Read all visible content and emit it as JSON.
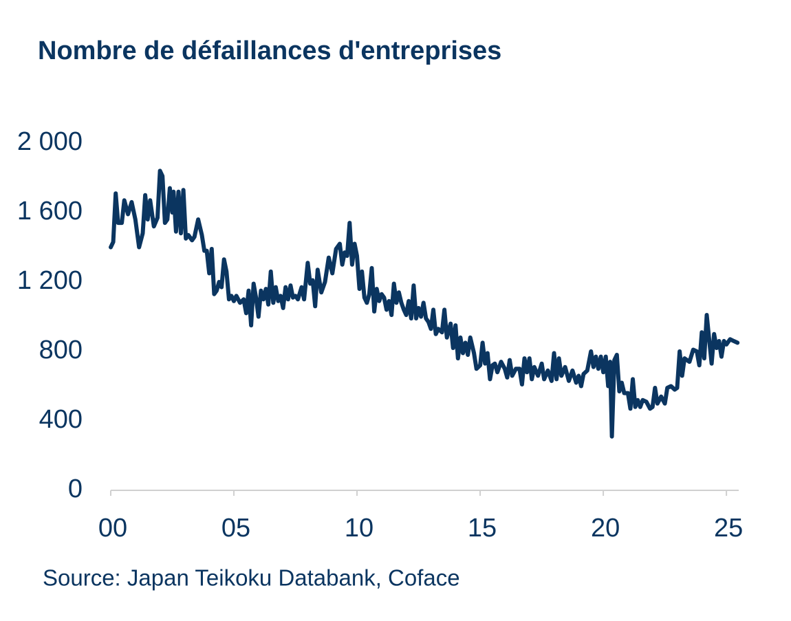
{
  "chart_data": {
    "type": "line",
    "title": "Nombre de défaillances d'entreprises",
    "source": "Source: Japan Teikoku Databank, Coface",
    "color": "#0b3560",
    "xlim": [
      2000,
      2025.5
    ],
    "ylim": [
      0,
      2000
    ],
    "xticks": [
      {
        "value": 2000,
        "label": "00"
      },
      {
        "value": 2005,
        "label": "05"
      },
      {
        "value": 2010,
        "label": "10"
      },
      {
        "value": 2015,
        "label": "15"
      },
      {
        "value": 2020,
        "label": "20"
      },
      {
        "value": 2025,
        "label": "25"
      }
    ],
    "yticks": [
      0,
      400,
      800,
      {
        "value": 1200,
        "label": "1 200"
      },
      {
        "value": 1600,
        "label": "1 600"
      },
      {
        "value": 2000,
        "label": "2 000"
      }
    ],
    "x": [
      2000.0,
      2000.1,
      2000.2,
      2000.3,
      2000.45,
      2000.55,
      2000.7,
      2000.85,
      2001.0,
      2001.15,
      2001.3,
      2001.4,
      2001.5,
      2001.6,
      2001.75,
      2001.9,
      2002.0,
      2002.1,
      2002.2,
      2002.3,
      2002.4,
      2002.5,
      2002.55,
      2002.65,
      2002.75,
      2002.85,
      2002.95,
      2003.05,
      2003.15,
      2003.3,
      2003.4,
      2003.55,
      2003.7,
      2003.8,
      2003.9,
      2004.0,
      2004.1,
      2004.2,
      2004.3,
      2004.4,
      2004.5,
      2004.6,
      2004.7,
      2004.8,
      2004.9,
      2005.0,
      2005.1,
      2005.25,
      2005.4,
      2005.5,
      2005.6,
      2005.7,
      2005.8,
      2005.9,
      2006.0,
      2006.1,
      2006.2,
      2006.3,
      2006.4,
      2006.5,
      2006.6,
      2006.7,
      2006.8,
      2006.9,
      2007.0,
      2007.1,
      2007.2,
      2007.3,
      2007.4,
      2007.5,
      2007.6,
      2007.75,
      2007.85,
      2008.0,
      2008.1,
      2008.2,
      2008.3,
      2008.4,
      2008.55,
      2008.7,
      2008.85,
      2009.0,
      2009.15,
      2009.3,
      2009.4,
      2009.5,
      2009.6,
      2009.7,
      2009.8,
      2009.9,
      2010.0,
      2010.1,
      2010.2,
      2010.3,
      2010.4,
      2010.5,
      2010.6,
      2010.7,
      2010.8,
      2010.9,
      2011.0,
      2011.1,
      2011.2,
      2011.3,
      2011.4,
      2011.5,
      2011.6,
      2011.7,
      2011.8,
      2011.9,
      2012.0,
      2012.1,
      2012.2,
      2012.3,
      2012.4,
      2012.5,
      2012.6,
      2012.7,
      2012.8,
      2012.9,
      2013.0,
      2013.1,
      2013.2,
      2013.3,
      2013.45,
      2013.55,
      2013.65,
      2013.8,
      2013.9,
      2014.0,
      2014.1,
      2014.2,
      2014.3,
      2014.4,
      2014.5,
      2014.6,
      2014.75,
      2014.85,
      2015.0,
      2015.1,
      2015.2,
      2015.3,
      2015.4,
      2015.5,
      2015.6,
      2015.7,
      2015.85,
      2016.0,
      2016.1,
      2016.2,
      2016.3,
      2016.45,
      2016.6,
      2016.7,
      2016.8,
      2016.9,
      2017.0,
      2017.1,
      2017.2,
      2017.35,
      2017.5,
      2017.6,
      2017.75,
      2017.9,
      2018.0,
      2018.1,
      2018.2,
      2018.3,
      2018.45,
      2018.6,
      2018.75,
      2018.9,
      2019.0,
      2019.1,
      2019.2,
      2019.35,
      2019.5,
      2019.6,
      2019.7,
      2019.8,
      2019.9,
      2020.0,
      2020.1,
      2020.2,
      2020.28,
      2020.35,
      2020.45,
      2020.55,
      2020.65,
      2020.75,
      2020.85,
      2021.0,
      2021.1,
      2021.2,
      2021.3,
      2021.4,
      2021.5,
      2021.6,
      2021.75,
      2021.9,
      2022.0,
      2022.1,
      2022.2,
      2022.35,
      2022.5,
      2022.6,
      2022.75,
      2022.9,
      2023.0,
      2023.1,
      2023.2,
      2023.3,
      2023.5,
      2023.65,
      2023.8,
      2023.9,
      2024.0,
      2024.1,
      2024.2,
      2024.3,
      2024.4,
      2024.5,
      2024.6,
      2024.7,
      2024.8,
      2024.9,
      2025.0,
      2025.15,
      2025.3,
      2025.45
    ],
    "values": [
      1400,
      1430,
      1710,
      1540,
      1540,
      1670,
      1590,
      1660,
      1560,
      1400,
      1480,
      1700,
      1560,
      1670,
      1520,
      1570,
      1840,
      1810,
      1540,
      1560,
      1740,
      1600,
      1720,
      1490,
      1720,
      1480,
      1730,
      1450,
      1470,
      1440,
      1460,
      1560,
      1470,
      1380,
      1380,
      1250,
      1390,
      1130,
      1150,
      1200,
      1170,
      1330,
      1260,
      1100,
      1120,
      1090,
      1120,
      1080,
      1100,
      1020,
      1150,
      950,
      1190,
      1110,
      1000,
      1150,
      1100,
      1160,
      1070,
      1260,
      1080,
      1170,
      1090,
      1120,
      1050,
      1170,
      1100,
      1180,
      1110,
      1120,
      1100,
      1170,
      1100,
      1310,
      1190,
      1210,
      1060,
      1270,
      1140,
      1200,
      1340,
      1250,
      1390,
      1420,
      1300,
      1370,
      1350,
      1540,
      1300,
      1420,
      1350,
      1160,
      1260,
      1110,
      1080,
      1130,
      1280,
      1030,
      1160,
      1090,
      1130,
      1110,
      1040,
      1090,
      1010,
      1190,
      1080,
      1140,
      1080,
      1040,
      1010,
      1090,
      990,
      1180,
      990,
      1050,
      1000,
      1080,
      990,
      970,
      930,
      1040,
      900,
      930,
      910,
      1040,
      880,
      960,
      820,
      950,
      760,
      880,
      790,
      850,
      780,
      880,
      790,
      700,
      720,
      850,
      730,
      790,
      640,
      720,
      730,
      680,
      740,
      700,
      650,
      750,
      660,
      700,
      700,
      610,
      760,
      680,
      760,
      640,
      710,
      660,
      730,
      640,
      690,
      630,
      790,
      640,
      760,
      660,
      710,
      630,
      690,
      620,
      660,
      600,
      670,
      690,
      800,
      710,
      770,
      700,
      770,
      680,
      770,
      600,
      740,
      310,
      750,
      780,
      570,
      620,
      560,
      560,
      470,
      640,
      480,
      520,
      480,
      520,
      510,
      470,
      480,
      590,
      500,
      540,
      500,
      590,
      600,
      580,
      590,
      800,
      660,
      760,
      740,
      810,
      800,
      720,
      910,
      760,
      1010,
      870,
      730,
      900,
      820,
      860,
      770,
      860,
      840,
      870,
      860,
      850
    ]
  }
}
